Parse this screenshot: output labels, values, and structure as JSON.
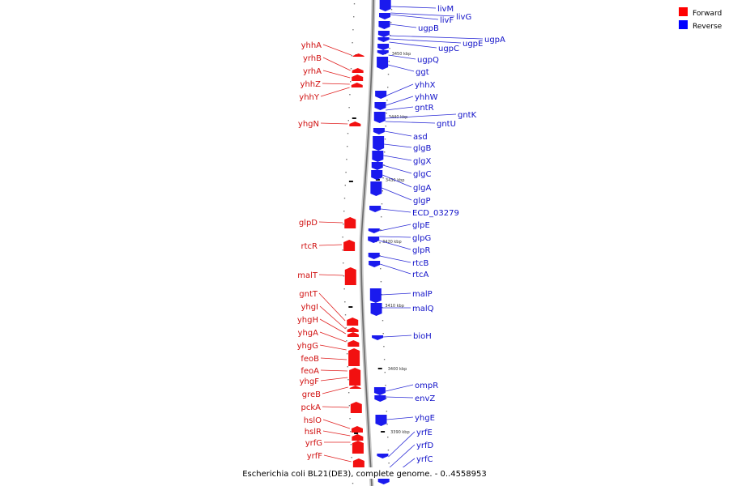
{
  "caption": "Escherichia coli BL21(DE3), complete genome. - 0..4558953",
  "legend": {
    "forward": {
      "label": "Forward",
      "color": "#ff0000"
    },
    "reverse": {
      "label": "Reverse",
      "color": "#0000ff"
    }
  },
  "ticks": [
    "3450 kbp",
    "3440 kbp",
    "3430 kbp",
    "3420 kbp",
    "3410 kbp",
    "3400 kbp",
    "3390 kbp"
  ],
  "forward_genes": [
    "yhhA",
    "yrhB",
    "yrhA",
    "yhhZ",
    "yhhY",
    "yhgN",
    "glpD",
    "rtcR",
    "malT",
    "gntT",
    "yhgI",
    "yhgH",
    "yhgA",
    "yhgG",
    "feoB",
    "feoA",
    "yhgF",
    "greB",
    "pckA",
    "hslO",
    "hslR",
    "yrfG",
    "yrfF"
  ],
  "reverse_genes": [
    "livM",
    "livF",
    "livG",
    "ugpB",
    "ugpA",
    "ugpE",
    "ugpC",
    "ugpQ",
    "ggt",
    "yhhX",
    "yhhW",
    "gntR",
    "gntK",
    "gntU",
    "asd",
    "glgB",
    "glgX",
    "glgC",
    "glgA",
    "glgP",
    "ECD_03279",
    "glpE",
    "glpG",
    "glpR",
    "rtcB",
    "rtcA",
    "malP",
    "malQ",
    "bioH",
    "ompR",
    "envZ",
    "yhgE",
    "yrfE",
    "yrfD",
    "yrfC"
  ]
}
